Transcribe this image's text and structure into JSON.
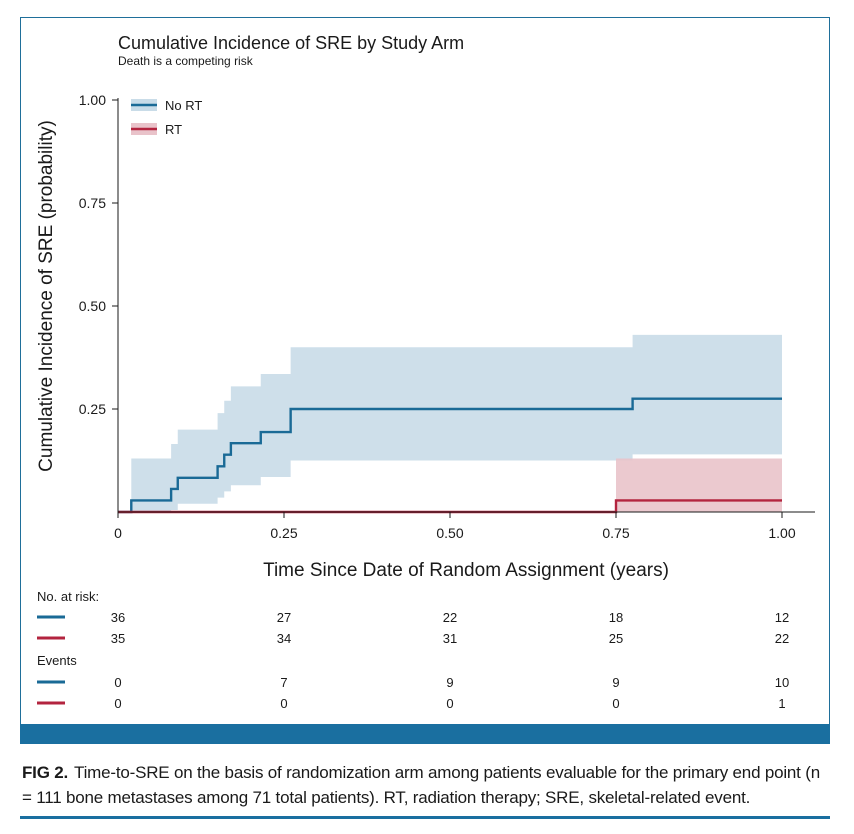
{
  "chart_data": {
    "type": "line",
    "title": "Cumulative Incidence of SRE by Study Arm",
    "subtitle": "Death is a competing risk",
    "xlabel": "Time Since Date of Random Assignment (years)",
    "ylabel": "Cumulative Incidence of SRE (probability)",
    "xlim": [
      0,
      1.05
    ],
    "ylim": [
      0,
      1.0
    ],
    "x_ticks": [
      0,
      0.25,
      0.5,
      0.75,
      1.0
    ],
    "x_tick_labels": [
      "0",
      "0.25",
      "0.50",
      "0.75",
      "1.00"
    ],
    "y_ticks": [
      0.25,
      0.5,
      0.75,
      1.0
    ],
    "y_tick_labels": [
      "0.25",
      "0.50",
      "0.75",
      "1.00"
    ],
    "legend_position": "top-left",
    "series": [
      {
        "name": "No RT",
        "color": "#1a6a96",
        "ci_color": "#c9dce8",
        "steps": [
          [
            0,
            0
          ],
          [
            0.02,
            0.028
          ],
          [
            0.08,
            0.056
          ],
          [
            0.09,
            0.083
          ],
          [
            0.15,
            0.111
          ],
          [
            0.16,
            0.139
          ],
          [
            0.17,
            0.167
          ],
          [
            0.215,
            0.194
          ],
          [
            0.26,
            0.25
          ],
          [
            0.775,
            0.275
          ],
          [
            1.0,
            0.275
          ]
        ],
        "ci_lower": [
          [
            0,
            0
          ],
          [
            0.02,
            0
          ],
          [
            0.08,
            0.005
          ],
          [
            0.09,
            0.02
          ],
          [
            0.15,
            0.035
          ],
          [
            0.16,
            0.05
          ],
          [
            0.17,
            0.065
          ],
          [
            0.215,
            0.085
          ],
          [
            0.26,
            0.125
          ],
          [
            0.775,
            0.14
          ],
          [
            1.0,
            0.14
          ]
        ],
        "ci_upper": [
          [
            0,
            0
          ],
          [
            0.02,
            0.13
          ],
          [
            0.08,
            0.165
          ],
          [
            0.09,
            0.2
          ],
          [
            0.15,
            0.24
          ],
          [
            0.16,
            0.27
          ],
          [
            0.17,
            0.305
          ],
          [
            0.215,
            0.335
          ],
          [
            0.26,
            0.4
          ],
          [
            0.775,
            0.43
          ],
          [
            1.0,
            0.43
          ]
        ]
      },
      {
        "name": "RT",
        "color": "#b3243f",
        "ci_color": "#e9c3ca",
        "steps": [
          [
            0,
            0
          ],
          [
            0.75,
            0.028
          ],
          [
            1.0,
            0.028
          ]
        ],
        "ci_lower": [
          [
            0,
            0
          ],
          [
            0.75,
            0
          ],
          [
            1.0,
            0
          ]
        ],
        "ci_upper": [
          [
            0,
            0
          ],
          [
            0.75,
            0.13
          ],
          [
            1.0,
            0.13
          ]
        ]
      }
    ],
    "risk_table": {
      "title": "No. at risk:",
      "timepoints": [
        0,
        0.25,
        0.5,
        0.75,
        1.0
      ],
      "rows": [
        {
          "series": "No RT",
          "values": [
            "36",
            "27",
            "22",
            "18",
            "12"
          ]
        },
        {
          "series": "RT",
          "values": [
            "35",
            "34",
            "31",
            "25",
            "22"
          ]
        }
      ]
    },
    "events_table": {
      "title": "Events",
      "timepoints": [
        0,
        0.25,
        0.5,
        0.75,
        1.0
      ],
      "rows": [
        {
          "series": "No RT",
          "values": [
            "0",
            "7",
            "9",
            "9",
            "10"
          ]
        },
        {
          "series": "RT",
          "values": [
            "0",
            "0",
            "0",
            "0",
            "1"
          ]
        }
      ]
    }
  },
  "caption": {
    "label": "FIG 2.",
    "text": "Time-to-SRE on the basis of randomization arm among patients evaluable for the primary end point (n = 111 bone metastases among 71 total patients). RT, radiation therapy; SRE, skeletal-related event."
  }
}
